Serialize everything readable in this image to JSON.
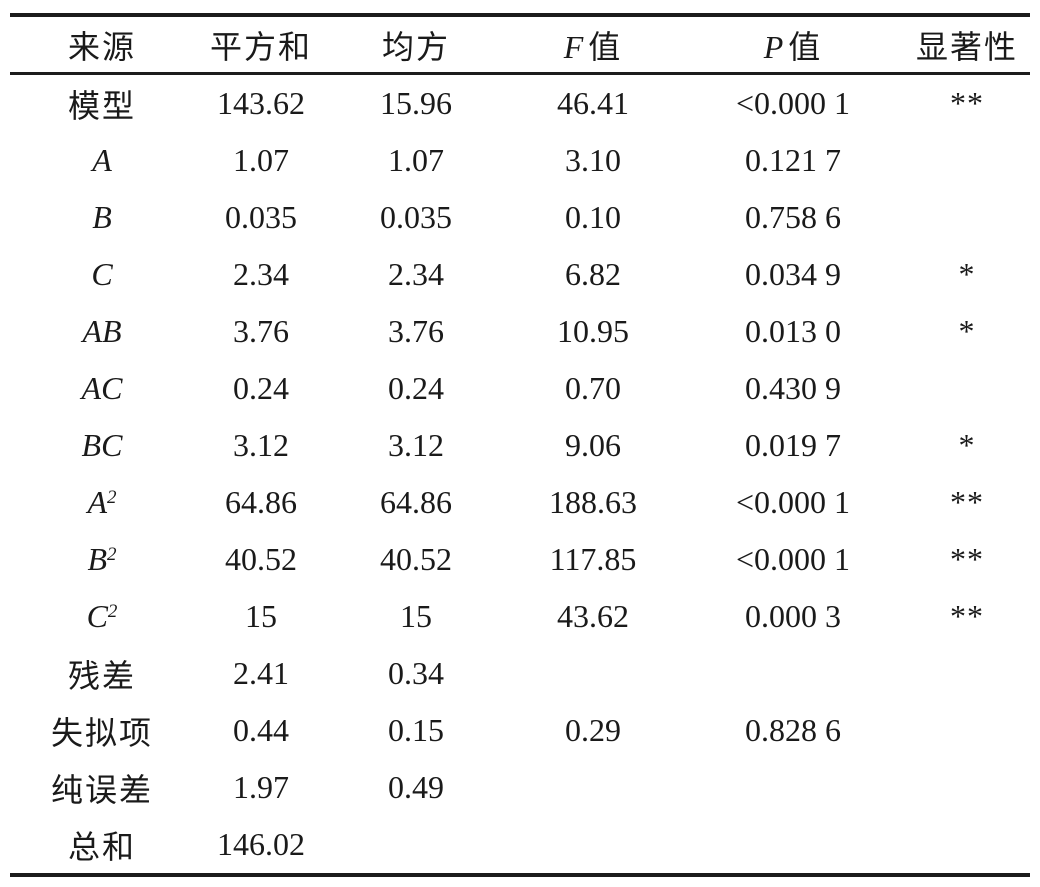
{
  "page": {
    "background": "#ffffff",
    "text_color": "#1a1a1a",
    "rule_color": "#1c1c1c"
  },
  "table": {
    "columns": [
      {
        "em": "",
        "text": "来源"
      },
      {
        "em": "",
        "text": "平方和"
      },
      {
        "em": "",
        "text": "均方"
      },
      {
        "em": "F",
        "text": "值"
      },
      {
        "em": "P",
        "text": "值"
      },
      {
        "em": "",
        "text": "显著性"
      }
    ],
    "rows": [
      {
        "source": {
          "base": "模型",
          "sup": ""
        },
        "ss": "143.62",
        "ms": "15.96",
        "f": "46.41",
        "p": "<0.000 1",
        "sig": "**"
      },
      {
        "source": {
          "base": "A",
          "sup": ""
        },
        "ss": "1.07",
        "ms": "1.07",
        "f": "3.10",
        "p": "0.121 7",
        "sig": ""
      },
      {
        "source": {
          "base": "B",
          "sup": ""
        },
        "ss": "0.035",
        "ms": "0.035",
        "f": "0.10",
        "p": "0.758 6",
        "sig": ""
      },
      {
        "source": {
          "base": "C",
          "sup": ""
        },
        "ss": "2.34",
        "ms": "2.34",
        "f": "6.82",
        "p": "0.034 9",
        "sig": "*"
      },
      {
        "source": {
          "base": "AB",
          "sup": ""
        },
        "ss": "3.76",
        "ms": "3.76",
        "f": "10.95",
        "p": "0.013 0",
        "sig": "*"
      },
      {
        "source": {
          "base": "AC",
          "sup": ""
        },
        "ss": "0.24",
        "ms": "0.24",
        "f": "0.70",
        "p": "0.430 9",
        "sig": ""
      },
      {
        "source": {
          "base": "BC",
          "sup": ""
        },
        "ss": "3.12",
        "ms": "3.12",
        "f": "9.06",
        "p": "0.019 7",
        "sig": "*"
      },
      {
        "source": {
          "base": "A",
          "sup": "2"
        },
        "ss": "64.86",
        "ms": "64.86",
        "f": "188.63",
        "p": "<0.000 1",
        "sig": "**"
      },
      {
        "source": {
          "base": "B",
          "sup": "2"
        },
        "ss": "40.52",
        "ms": "40.52",
        "f": "117.85",
        "p": "<0.000 1",
        "sig": "**"
      },
      {
        "source": {
          "base": "C",
          "sup": "2"
        },
        "ss": "15",
        "ms": "15",
        "f": "43.62",
        "p": "0.000 3",
        "sig": "**"
      },
      {
        "source": {
          "base": "残差",
          "sup": ""
        },
        "ss": "2.41",
        "ms": "0.34",
        "f": "",
        "p": "",
        "sig": ""
      },
      {
        "source": {
          "base": "失拟项",
          "sup": ""
        },
        "ss": "0.44",
        "ms": "0.15",
        "f": "0.29",
        "p": "0.828 6",
        "sig": ""
      },
      {
        "source": {
          "base": "纯误差",
          "sup": ""
        },
        "ss": "1.97",
        "ms": "0.49",
        "f": "",
        "p": "",
        "sig": ""
      },
      {
        "source": {
          "base": "总和",
          "sup": ""
        },
        "ss": "146.02",
        "ms": "",
        "f": "",
        "p": "",
        "sig": ""
      }
    ]
  }
}
